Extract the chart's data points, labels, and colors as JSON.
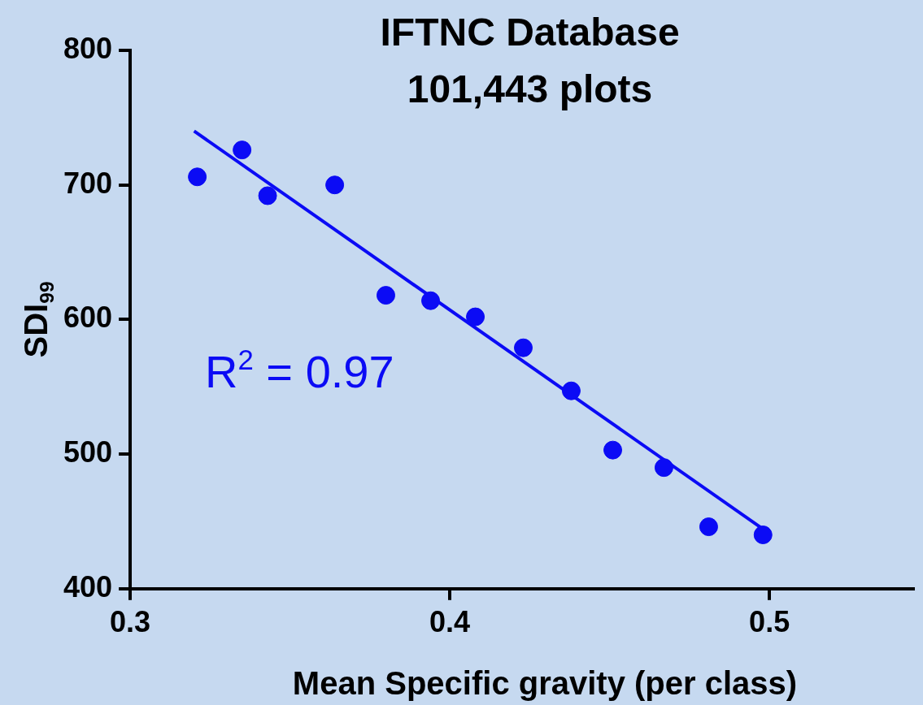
{
  "chart_data": {
    "type": "scatter",
    "title": "IFTNC Database",
    "subtitle": "101,443 plots",
    "xlabel": "Mean Specific gravity (per class)",
    "ylabel": "SDI$_{99}$",
    "annotations": [
      "R$^{2}$ = 0.97"
    ],
    "xlim": [
      0.3,
      0.545
    ],
    "xticks": [
      0.3,
      0.4,
      0.5
    ],
    "ylim": [
      400,
      800
    ],
    "yticks": [
      400,
      500,
      600,
      700,
      800
    ],
    "series": [
      {
        "type": "scatter",
        "color": "#0b0bf5",
        "marker": "circle",
        "x": [
          0.321,
          0.335,
          0.343,
          0.364,
          0.38,
          0.394,
          0.408,
          0.423,
          0.438,
          0.451,
          0.467,
          0.481,
          0.498
        ],
        "values": [
          706,
          726,
          692,
          700,
          618,
          614,
          602,
          579,
          547,
          503,
          490,
          446,
          440
        ]
      },
      {
        "type": "line",
        "color": "#0b0bf5",
        "marker": "none",
        "x": [
          0.32,
          0.5
        ],
        "values": [
          740,
          441
        ]
      }
    ]
  }
}
